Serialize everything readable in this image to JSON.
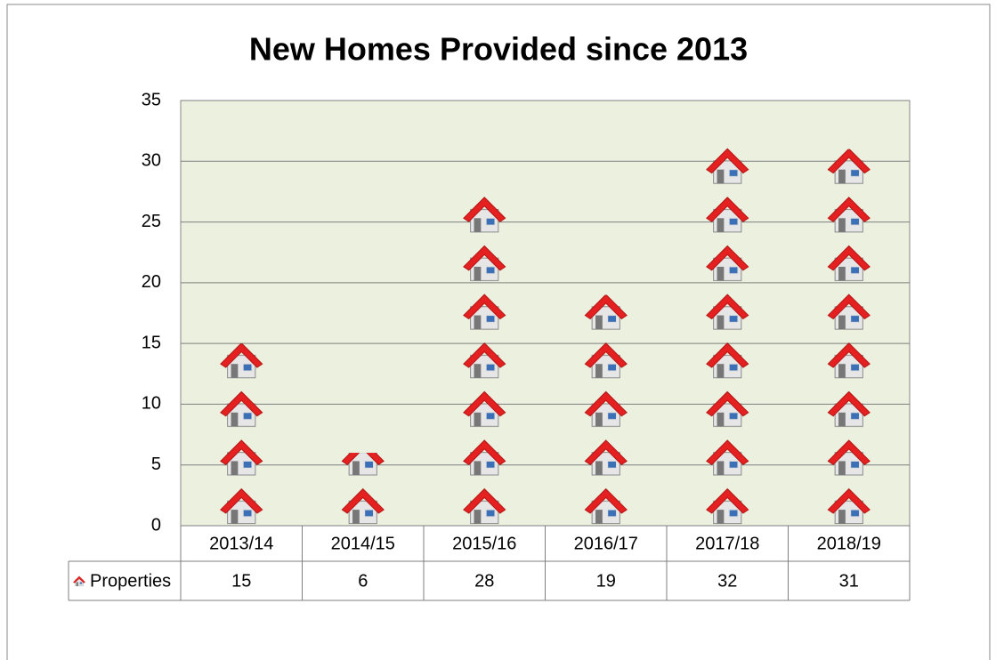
{
  "chart_data": {
    "type": "pictograph",
    "title": "New Homes Provided since 2013",
    "categories": [
      "2013/14",
      "2014/15",
      "2015/16",
      "2016/17",
      "2017/18",
      "2018/19"
    ],
    "series": [
      {
        "name": "Properties",
        "color": "#e03030",
        "values": [
          15,
          6,
          28,
          19,
          32,
          31
        ]
      }
    ],
    "ylim": [
      0,
      35
    ],
    "yticks": [
      0,
      5,
      10,
      15,
      20,
      25,
      30,
      35
    ],
    "grid": true,
    "data_table": true
  }
}
